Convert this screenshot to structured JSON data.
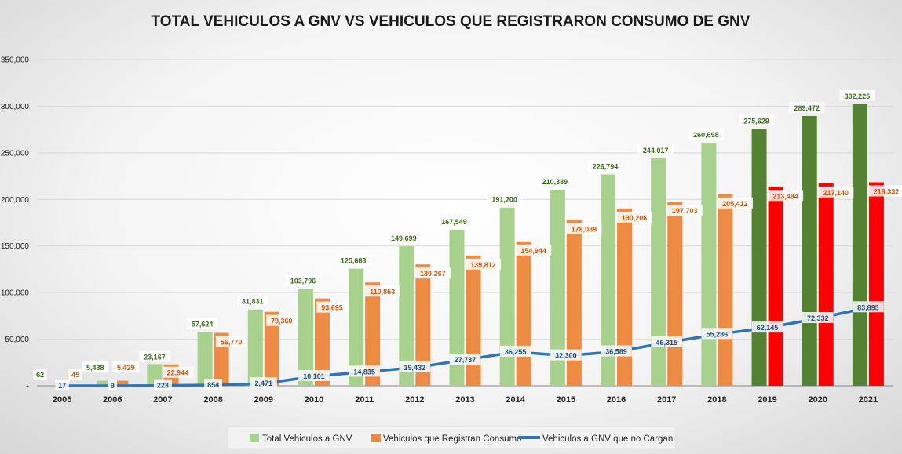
{
  "chart_data": {
    "type": "bar",
    "title": "TOTAL VEHICULOS A GNV VS VEHICULOS QUE REGISTRARON CONSUMO DE GNV",
    "xlabel": "",
    "ylabel": "",
    "ylim": [
      0,
      350000
    ],
    "y_ticks": [
      0,
      50000,
      100000,
      150000,
      200000,
      250000,
      300000,
      350000
    ],
    "y_tick_labels": [
      "-",
      "50,000",
      "100,000",
      "150,000",
      "200,000",
      "250,000",
      "300,000",
      "350,000"
    ],
    "grid": true,
    "legend_position": "bottom",
    "categories": [
      "2005",
      "2006",
      "2007",
      "2008",
      "2009",
      "2010",
      "2011",
      "2012",
      "2013",
      "2014",
      "2015",
      "2016",
      "2017",
      "2018",
      "2019",
      "2020",
      "2021"
    ],
    "series": [
      {
        "name": "Total Vehiculos a GNV",
        "kind": "bar",
        "color": "#a9d18e",
        "highlight_color": "#548235",
        "label_color": "#3d6b1e",
        "values": [
          62,
          5438,
          23167,
          57624,
          81831,
          103796,
          125688,
          149699,
          167549,
          191200,
          210389,
          226794,
          244017,
          260698,
          275629,
          289472,
          302225
        ],
        "labels": [
          "62",
          "5,438",
          "23,167",
          "57,624",
          "81,831",
          "103,796",
          "125,688",
          "149,699",
          "167,549",
          "191,200",
          "210,389",
          "226,794",
          "244,017",
          "260,698",
          "275,629",
          "289,472",
          "302,225"
        ]
      },
      {
        "name": "Vehiculos que Registran Consumo",
        "kind": "bar",
        "color": "#ed8b44",
        "highlight_color": "#ff0000",
        "label_color": "#c55a11",
        "values": [
          45,
          5429,
          22944,
          56770,
          79360,
          93695,
          110853,
          130267,
          139812,
          154944,
          178089,
          190206,
          197703,
          205412,
          213484,
          217140,
          218332
        ],
        "labels": [
          "45",
          "5,429",
          "22,944",
          "56,770",
          "79,360",
          "93,695",
          "110,853",
          "130,267",
          "139,812",
          "154,944",
          "178,089",
          "190,206",
          "197,703",
          "205,412",
          "213,484",
          "217,140",
          "218,332"
        ]
      },
      {
        "name": "Vehiculos a GNV que no Cargan",
        "kind": "line",
        "color": "#2e75b6",
        "label_color": "#1f4e79",
        "values": [
          17,
          9,
          223,
          854,
          2471,
          10101,
          14835,
          19432,
          27737,
          36255,
          32300,
          36589,
          46315,
          55286,
          62145,
          72332,
          83893
        ],
        "labels": [
          "17",
          "9",
          "223",
          "854",
          "2,471",
          "10,101",
          "14,835",
          "19,432",
          "27,737",
          "36,255",
          "32,300",
          "36,589",
          "46,315",
          "55,286",
          "62,145",
          "72,332",
          "83,893"
        ]
      }
    ],
    "highlight_categories": [
      "2019",
      "2020",
      "2021"
    ]
  },
  "legend": {
    "items": [
      {
        "label": "Total Vehiculos a GNV"
      },
      {
        "label": "Vehiculos que Registran Consumo"
      },
      {
        "label": "Vehiculos a GNV que no Cargan"
      }
    ]
  }
}
